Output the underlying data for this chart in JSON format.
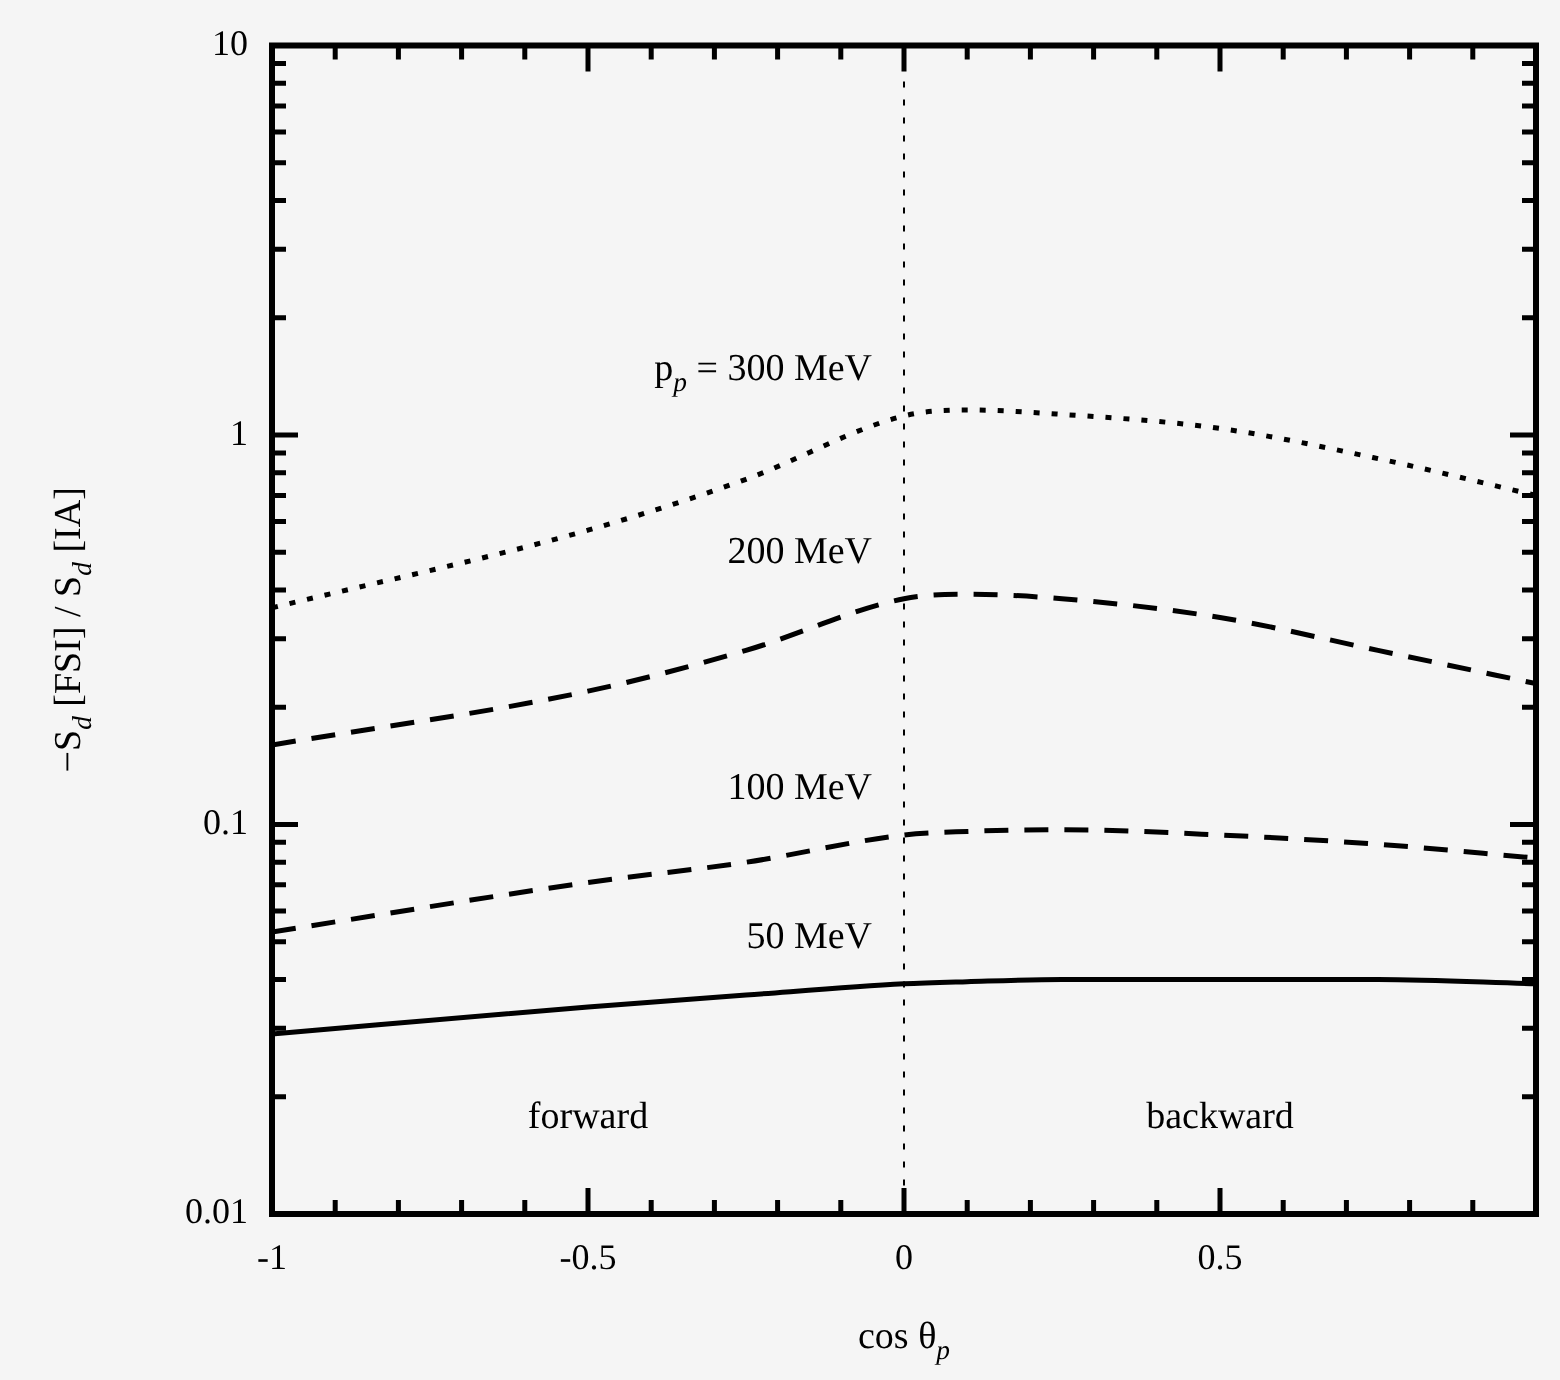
{
  "chart_data": {
    "type": "line",
    "xlabel": "cos θ$_{p}$",
    "ylabel": "−S$_{d}$ [FSI] / S$_{d}$ [IA]",
    "log": "y",
    "xlim": [
      -1,
      1
    ],
    "xticks": [
      -1,
      {
        "value": -0.9,
        "label": null
      },
      {
        "value": -0.8,
        "label": null
      },
      {
        "value": -0.7,
        "label": null
      },
      {
        "value": -0.6,
        "label": null
      },
      -0.5,
      {
        "value": -0.4,
        "label": null
      },
      {
        "value": -0.3,
        "label": null
      },
      {
        "value": -0.2,
        "label": null
      },
      {
        "value": -0.1,
        "label": null
      },
      0,
      {
        "value": 0.1,
        "label": null
      },
      {
        "value": 0.2,
        "label": null
      },
      {
        "value": 0.3,
        "label": null
      },
      {
        "value": 0.4,
        "label": null
      },
      0.5,
      {
        "value": 0.6,
        "label": null
      },
      {
        "value": 0.7,
        "label": null
      },
      {
        "value": 0.8,
        "label": null
      },
      {
        "value": 0.9,
        "label": null
      },
      {
        "value": 1,
        "label": null
      }
    ],
    "ylim": [
      0.01,
      10
    ],
    "yticks": [
      0.01,
      {
        "value": 0.02,
        "label": null
      },
      {
        "value": 0.03,
        "label": null
      },
      {
        "value": 0.04,
        "label": null
      },
      {
        "value": 0.05,
        "label": null
      },
      {
        "value": 0.06,
        "label": null
      },
      {
        "value": 0.07,
        "label": null
      },
      {
        "value": 0.08,
        "label": null
      },
      {
        "value": 0.09,
        "label": null
      },
      0.1,
      {
        "value": 0.2,
        "label": null
      },
      {
        "value": 0.3,
        "label": null
      },
      {
        "value": 0.4,
        "label": null
      },
      {
        "value": 0.5,
        "label": null
      },
      {
        "value": 0.6,
        "label": null
      },
      {
        "value": 0.7,
        "label": null
      },
      {
        "value": 0.8,
        "label": null
      },
      {
        "value": 0.9,
        "label": null
      },
      1,
      {
        "value": 2,
        "label": null
      },
      {
        "value": 3,
        "label": null
      },
      {
        "value": 4,
        "label": null
      },
      {
        "value": 5,
        "label": null
      },
      {
        "value": 6,
        "label": null
      },
      {
        "value": 7,
        "label": null
      },
      {
        "value": 8,
        "label": null
      },
      {
        "value": 9,
        "label": null
      },
      10
    ],
    "grid": false,
    "legend": false,
    "marker": "none",
    "x": [
      -1,
      -0.5,
      -0.25,
      0,
      0.1,
      0.25,
      0.5,
      0.75,
      1
    ],
    "series": [
      {
        "name": "p$_{p}$ = 300 MeV",
        "color": "#000000",
        "line_style": "dotted",
        "values": [
          0.36,
          0.57,
          0.77,
          1.12,
          1.16,
          1.13,
          1.04,
          0.87,
          0.7
        ]
      },
      {
        "name": "200 MeV",
        "color": "#000000",
        "line_style": "dashed",
        "values": [
          0.16,
          0.22,
          0.28,
          0.38,
          0.39,
          0.38,
          0.34,
          0.28,
          0.23
        ]
      },
      {
        "name": "100 MeV",
        "color": "#000000",
        "line_style": "dashed",
        "values": [
          0.053,
          0.071,
          0.08,
          0.094,
          0.096,
          0.097,
          0.094,
          0.089,
          0.082
        ]
      },
      {
        "name": "50 MeV",
        "color": "#000000",
        "line_style": "solid",
        "values": [
          0.029,
          0.034,
          0.0365,
          0.039,
          0.0395,
          0.04,
          0.04,
          0.04,
          0.039
        ]
      }
    ],
    "ref_lines": [
      {
        "axis": "x",
        "value": 0,
        "color": "#000000",
        "line_style": "dotted"
      }
    ],
    "annotations": [
      "forward",
      "backward"
    ]
  }
}
